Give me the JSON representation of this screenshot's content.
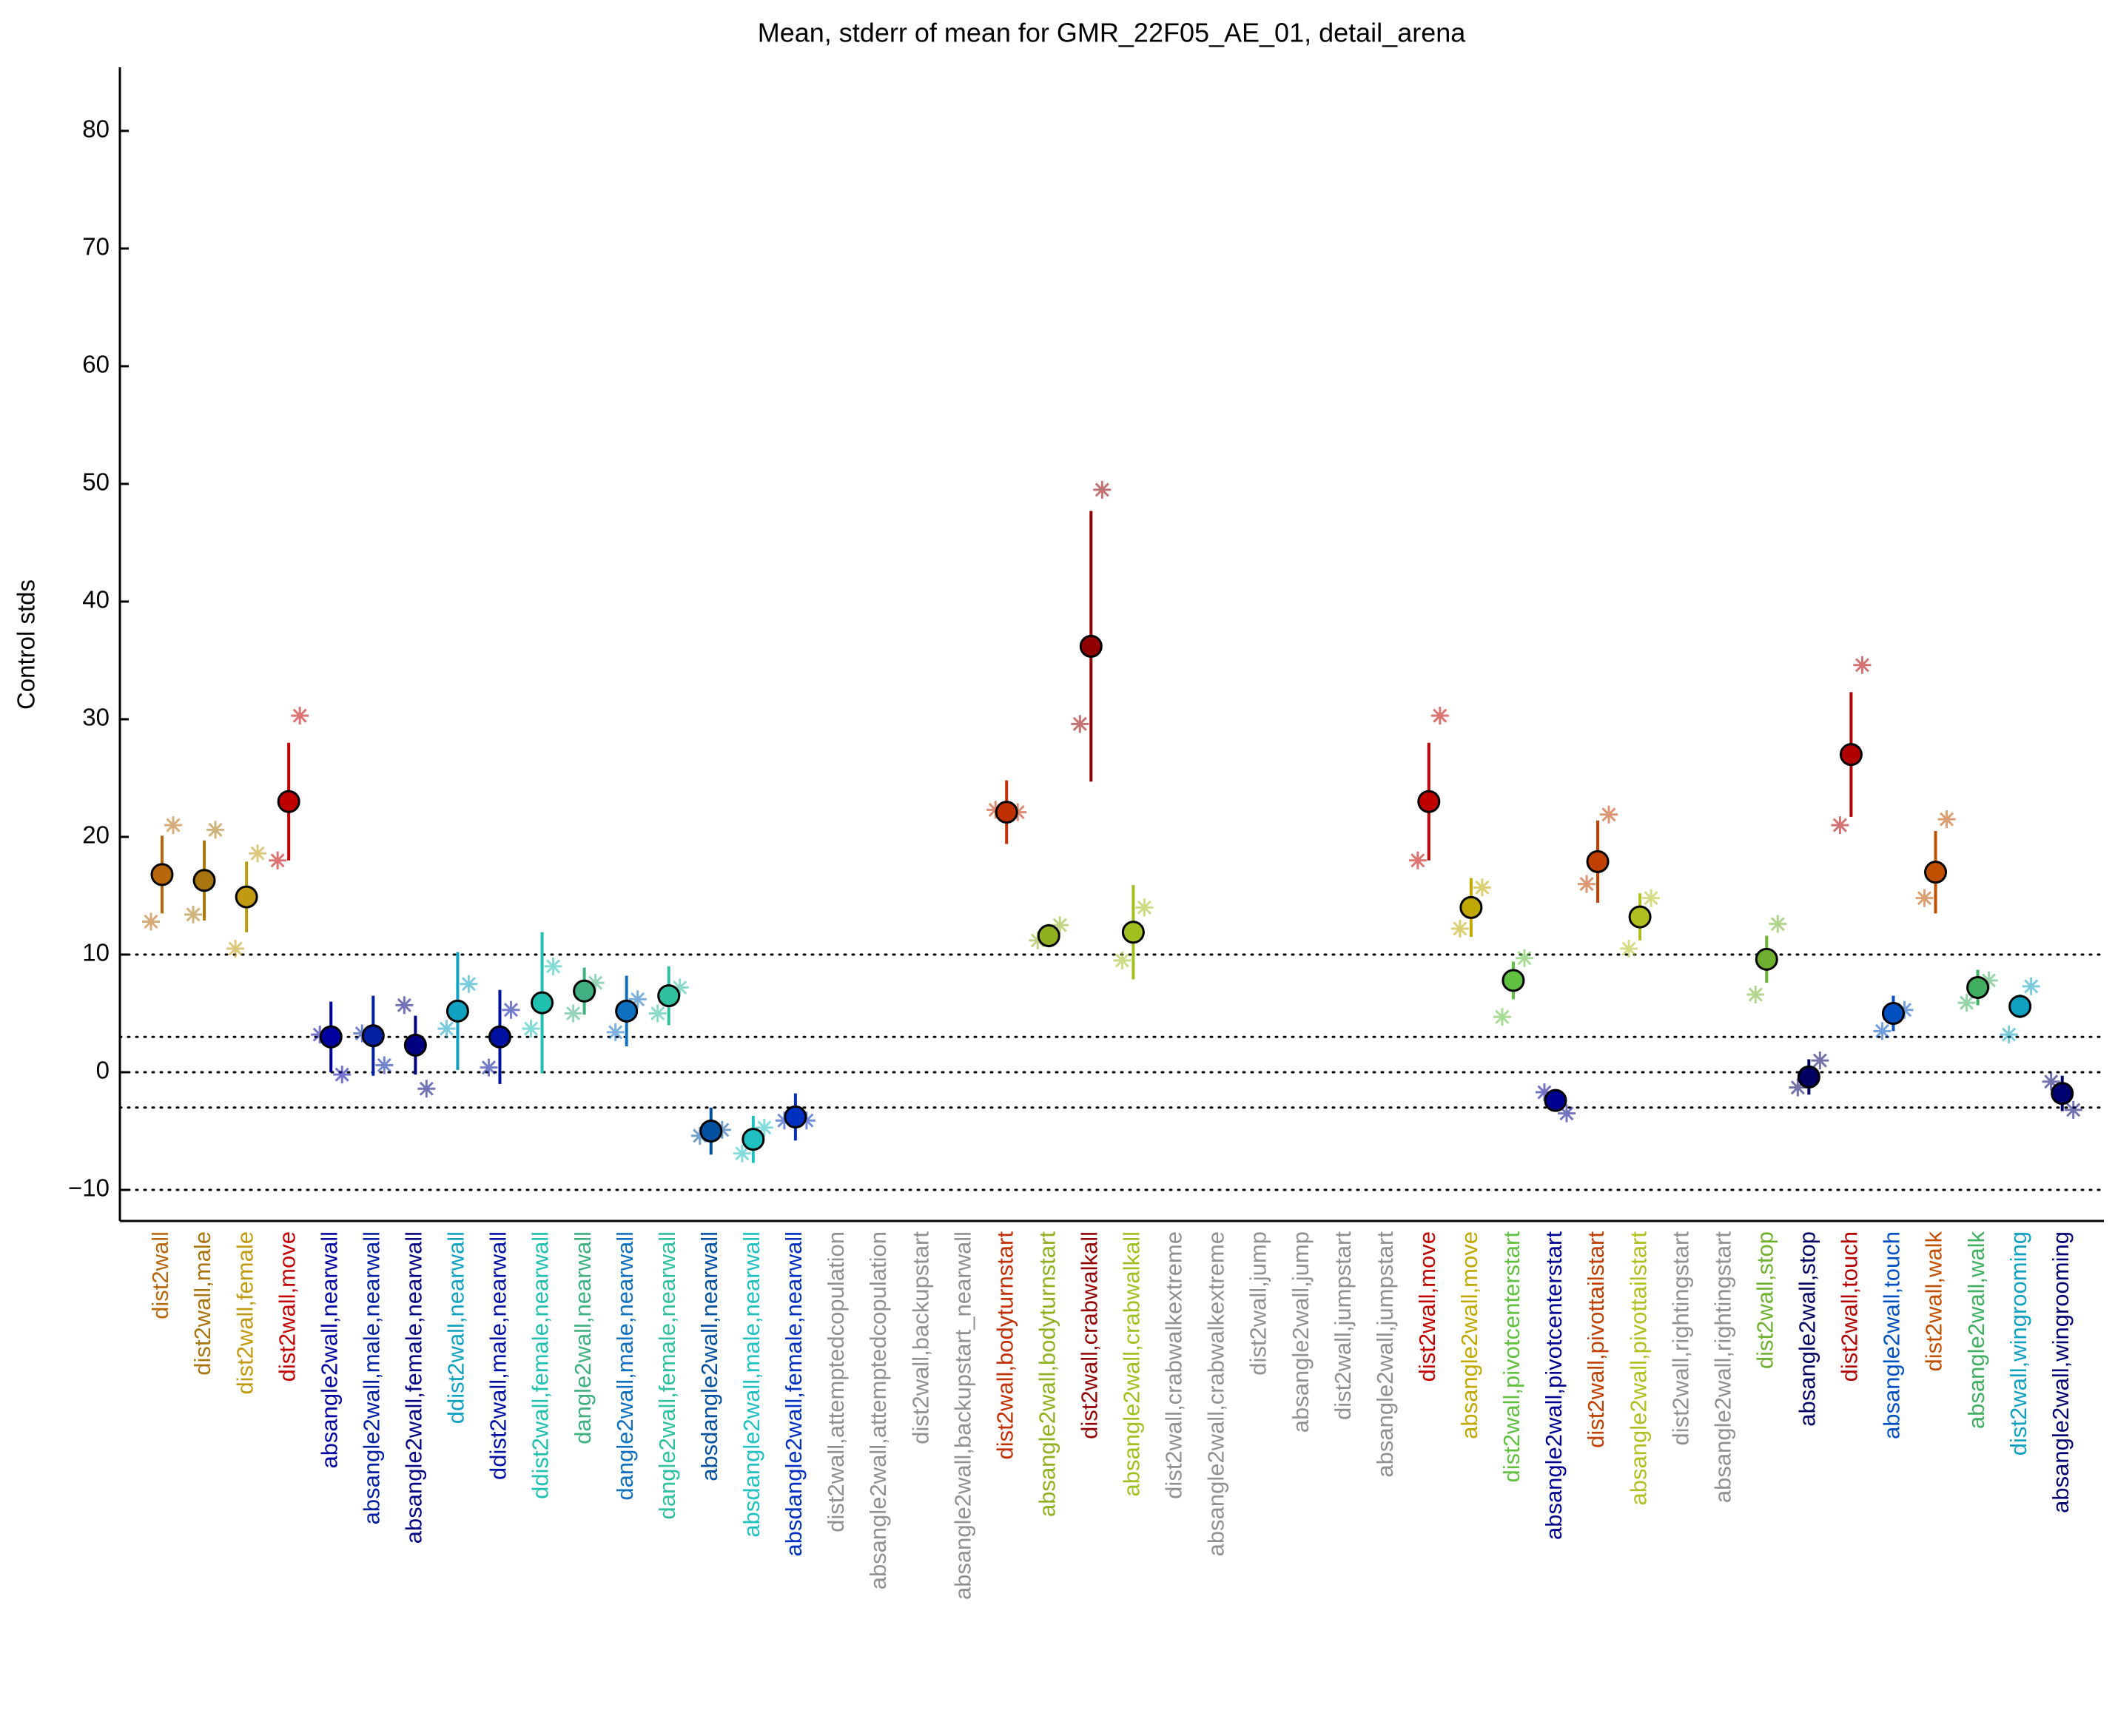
{
  "chart_data": {
    "type": "errorbar",
    "title": "Mean, stderr of mean for GMR_22F05_AE_01, detail_arena",
    "ylabel": "Control stds",
    "categories": [
      "dist2wall",
      "dist2wall,male",
      "dist2wall,female",
      "dist2wall,move",
      "absangle2wall,nearwall",
      "absangle2wall,male,nearwall",
      "absangle2wall,female,nearwall",
      "ddist2wall,nearwall",
      "ddist2wall,male,nearwall",
      "ddist2wall,female,nearwall",
      "dangle2wall,nearwall",
      "dangle2wall,male,nearwall",
      "dangle2wall,female,nearwall",
      "absdangle2wall,nearwall",
      "absdangle2wall,male,nearwall",
      "absdangle2wall,female,nearwall",
      "dist2wall,attemptedcopulation",
      "absangle2wall,attemptedcopulation",
      "dist2wall,backupstart",
      "absangle2wall,backupstart_nearwall",
      "dist2wall,bodyturnstart",
      "absangle2wall,bodyturnstart",
      "dist2wall,crabwalkall",
      "absangle2wall,crabwalkall",
      "dist2wall,crabwalkextreme",
      "absangle2wall,crabwalkextreme",
      "dist2wall,jump",
      "absangle2wall,jump",
      "dist2wall,jumpstart",
      "absangle2wall,jumpstart",
      "dist2wall,move",
      "absangle2wall,move",
      "dist2wall,pivotcenterstart",
      "absangle2wall,pivotcenterstart",
      "dist2wall,pivottailstart",
      "absangle2wall,pivottailstart",
      "dist2wall,rightingstart",
      "absangle2wall,rightingstart",
      "dist2wall,stop",
      "absangle2wall,stop",
      "dist2wall,touch",
      "absangle2wall,touch",
      "dist2wall,walk",
      "absangle2wall,walk",
      "dist2wall,wingrooming",
      "absangle2wall,wingrooming"
    ],
    "values": [
      16.8,
      16.3,
      14.9,
      23,
      3,
      3.1,
      2.3,
      5.2,
      3,
      5.9,
      6.9,
      5.2,
      6.5,
      -5,
      -5.7,
      -3.8,
      null,
      null,
      null,
      null,
      22.1,
      11.6,
      36.2,
      11.9,
      null,
      null,
      null,
      null,
      null,
      null,
      23,
      14,
      7.8,
      -2.4,
      17.9,
      13.2,
      null,
      null,
      9.6,
      -0.4,
      27,
      5,
      17,
      7.2,
      5.6,
      -1.8
    ],
    "errors": [
      3.3,
      3.4,
      3,
      5,
      3,
      3.4,
      2.5,
      5,
      4,
      6,
      2,
      3,
      2.5,
      2,
      2,
      2,
      null,
      null,
      null,
      null,
      2.7,
      1,
      11.5,
      4,
      null,
      null,
      null,
      null,
      null,
      null,
      5,
      2.5,
      1.6,
      0.8,
      3.5,
      2,
      null,
      null,
      2,
      1.5,
      5.3,
      1.5,
      3.5,
      1.5,
      1,
      1.5
    ],
    "star_values_a": [
      12.8,
      13.4,
      10.5,
      18,
      3.2,
      3.3,
      5.7,
      3.7,
      0.4,
      3.7,
      5,
      3.4,
      5,
      -5.4,
      -6.9,
      -4.1,
      null,
      null,
      null,
      null,
      22.3,
      11.2,
      29.6,
      9.5,
      null,
      null,
      null,
      null,
      null,
      null,
      18,
      12.2,
      4.7,
      -1.7,
      16,
      10.5,
      null,
      null,
      6.6,
      -1.3,
      21,
      3.5,
      14.8,
      5.9,
      3.2,
      -0.8
    ],
    "star_values_b": [
      21,
      20.6,
      18.6,
      30.3,
      -0.2,
      0.6,
      -1.4,
      7.5,
      5.3,
      9,
      7.6,
      6.2,
      7.2,
      -4.9,
      -4.7,
      -4.1,
      null,
      null,
      null,
      null,
      22.1,
      12.5,
      49.5,
      14,
      null,
      null,
      null,
      null,
      null,
      null,
      30.3,
      15.7,
      9.7,
      -3.5,
      21.9,
      14.8,
      null,
      null,
      12.6,
      1,
      34.6,
      5.3,
      21.5,
      7.8,
      7.3,
      -3.2
    ],
    "colors": [
      "#b8680c",
      "#a87510",
      "#c09a10",
      "#c00000",
      "#0000a0",
      "#0020a0",
      "#000080",
      "#10a0c0",
      "#0010a0",
      "#20c0b0",
      "#40b080",
      "#1070c0",
      "#30c0a0",
      "#0050a0",
      "#20c0c0",
      "#0030c0",
      "#909090",
      "#909090",
      "#909090",
      "#909090",
      "#c03000",
      "#90b020",
      "#900000",
      "#a0c020",
      "#909090",
      "#909090",
      "#909090",
      "#909090",
      "#909090",
      "#909090",
      "#c00000",
      "#c0a800",
      "#60c040",
      "#000090",
      "#c04000",
      "#b0c020",
      "#909090",
      "#909090",
      "#70b030",
      "#000060",
      "#b00000",
      "#0050c0",
      "#c05000",
      "#40b060",
      "#10a0c0",
      "#000070"
    ],
    "ylim": [
      -12.64,
      85.4
    ],
    "yticks": [
      {
        "value": -10,
        "label": "−10"
      },
      0,
      10,
      20,
      30,
      40,
      50,
      60,
      70,
      80
    ],
    "hlines": [
      10,
      3,
      0,
      -3,
      -10
    ],
    "grid": false
  }
}
